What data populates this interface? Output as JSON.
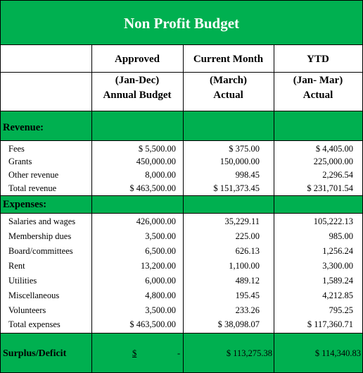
{
  "title": "Non Profit Budget",
  "headers": {
    "col1": {
      "line1": "Approved",
      "line2": "(Jan-Dec)",
      "line3": "Annual Budget"
    },
    "col2": {
      "line1": "Current Month",
      "line2": "(March)",
      "line3": "Actual"
    },
    "col3": {
      "line1": "YTD",
      "line2": "(Jan- Mar)",
      "line3": "Actual"
    }
  },
  "revenue": {
    "section_label": "Revenue:",
    "rows": [
      {
        "label": "Fees",
        "approved": "$ 5,500.00",
        "current": "$ 375.00",
        "ytd": "$ 4,405.00"
      },
      {
        "label": "Grants",
        "approved": "450,000.00",
        "current": "150,000.00",
        "ytd": "225,000.00"
      },
      {
        "label": "Other revenue",
        "approved": "8,000.00",
        "current": "998.45",
        "ytd": "2,296.54"
      },
      {
        "label": "Total revenue",
        "approved": "$ 463,500.00",
        "current": "$ 151,373.45",
        "ytd": "$ 231,701.54"
      }
    ]
  },
  "expenses": {
    "section_label": "Expenses:",
    "rows": [
      {
        "label": "Salaries and wages",
        "approved": "426,000.00",
        "current": "35,229.11",
        "ytd": "105,222.13"
      },
      {
        "label": "Membership dues",
        "approved": "3,500.00",
        "current": "225.00",
        "ytd": "985.00"
      },
      {
        "label": "Board/committees",
        "approved": "6,500.00",
        "current": "626.13",
        "ytd": "1,256.24"
      },
      {
        "label": "Rent",
        "approved": "13,200.00",
        "current": "1,100.00",
        "ytd": "3,300.00"
      },
      {
        "label": "Utilities",
        "approved": "6,000.00",
        "current": "489.12",
        "ytd": "1,589.24"
      },
      {
        "label": "Miscellaneous",
        "approved": "4,800.00",
        "current": "195.45",
        "ytd": "4,212.85"
      },
      {
        "label": "Volunteers",
        "approved": "3,500.00",
        "current": "233.26",
        "ytd": "795.25"
      },
      {
        "label": "Total expenses",
        "approved": "$ 463,500.00",
        "current": "$ 38,098.07",
        "ytd": "$ 117,360.71"
      }
    ]
  },
  "surplus": {
    "label": "Surplus/Deficit",
    "approved_symbol": "$",
    "approved_value": "-",
    "current": "$ 113,275.38",
    "ytd": "$ 114,340.83"
  }
}
